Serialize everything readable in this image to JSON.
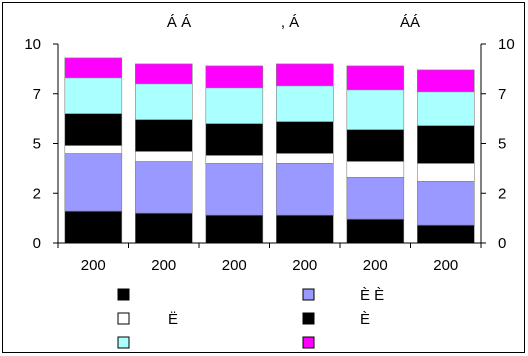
{
  "chart_data": {
    "type": "bar",
    "stacked": true,
    "title": "Á Á , Á ÁÁ",
    "title_parts": [
      "Á Á",
      ",  Á",
      "ÁÁ"
    ],
    "categories": [
      "200",
      "200",
      "200",
      "200",
      "200",
      "200"
    ],
    "y_ticks_left": [
      "0",
      "2",
      "5",
      "7",
      "10"
    ],
    "y_ticks_right": [
      "0",
      "2",
      "5",
      "7",
      "10"
    ],
    "ylim": [
      0,
      10
    ],
    "grid": false,
    "legend_position": "bottom",
    "series": [
      {
        "label": "",
        "color": "#000000",
        "values": [
          1.6,
          1.5,
          1.4,
          1.4,
          1.2,
          0.9
        ]
      },
      {
        "label": "È È",
        "color": "#9999ff",
        "values": [
          2.9,
          2.6,
          2.6,
          2.6,
          2.1,
          2.2
        ]
      },
      {
        "label": "Ë",
        "color": "#ffffff",
        "values": [
          0.4,
          0.5,
          0.4,
          0.5,
          0.8,
          0.9
        ]
      },
      {
        "label": "È",
        "color": "#000000",
        "values": [
          1.6,
          1.6,
          1.6,
          1.6,
          1.6,
          1.9
        ]
      },
      {
        "label": "",
        "color": "#aaffff",
        "values": [
          1.8,
          1.8,
          1.8,
          1.8,
          2.0,
          1.7
        ]
      },
      {
        "label": "",
        "color": "#ff00ff",
        "values": [
          1.0,
          1.0,
          1.1,
          1.1,
          1.2,
          1.1
        ]
      }
    ]
  }
}
